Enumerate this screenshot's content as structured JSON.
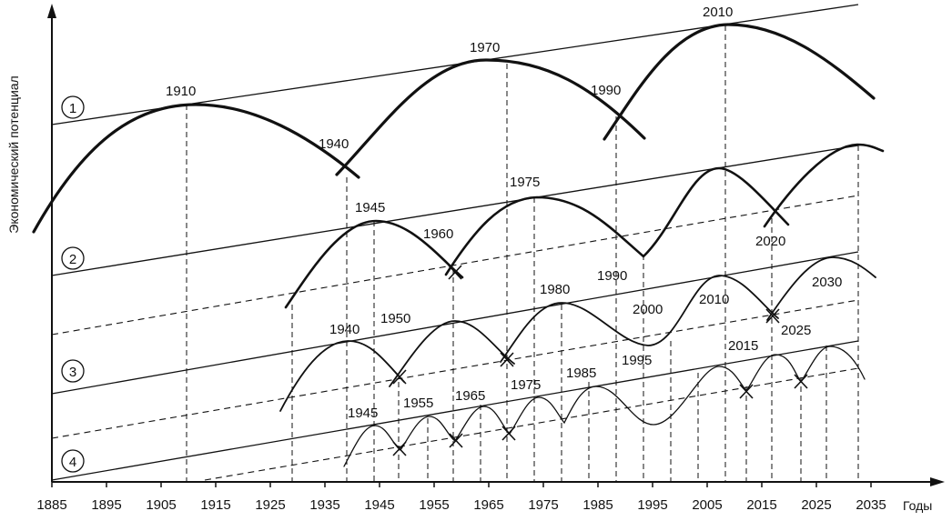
{
  "axes": {
    "y_label": "Экономический потенциал",
    "x_label": "Годы",
    "x_ticks": [
      "1885",
      "1895",
      "1905",
      "1915",
      "1925",
      "1935",
      "1945",
      "1955",
      "1965",
      "1975",
      "1985",
      "1995",
      "2005",
      "2015",
      "2025",
      "2035"
    ]
  },
  "bands": [
    {
      "id": "1",
      "labels": [
        "1910",
        "1940",
        "1970",
        "1990",
        "2010"
      ]
    },
    {
      "id": "2",
      "labels": [
        "1945",
        "1960",
        "1975",
        "1990",
        "2020"
      ]
    },
    {
      "id": "3",
      "labels": [
        "1940",
        "1950",
        "1980",
        "2000",
        "1995",
        "2010",
        "2025",
        "2030"
      ]
    },
    {
      "id": "4",
      "labels": [
        "1945",
        "1955",
        "1965",
        "1975",
        "1985",
        "2015"
      ]
    }
  ]
}
